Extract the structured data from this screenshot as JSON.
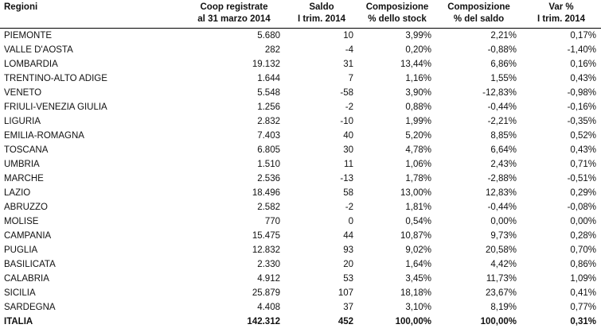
{
  "colors": {
    "background": "#ffffff",
    "text": "#111111",
    "header_rule": "#000000"
  },
  "table": {
    "header": [
      {
        "line1": "Regioni",
        "line2": ""
      },
      {
        "line1": "Coop registrate",
        "line2": "al 31 marzo 2014"
      },
      {
        "line1": "Saldo",
        "line2": "I trim. 2014"
      },
      {
        "line1": "Composizione",
        "line2": "% dello stock"
      },
      {
        "line1": "Composizione",
        "line2": "% del saldo"
      },
      {
        "line1": "Var %",
        "line2": "I trim. 2014"
      }
    ]
  },
  "chart_data": {
    "type": "table",
    "title": "",
    "columns": [
      "Regioni",
      "Coop registrate al 31 marzo 2014",
      "Saldo I trim. 2014",
      "Composizione % dello stock",
      "Composizione % del saldo",
      "Var % I trim. 2014"
    ],
    "rows": [
      [
        "PIEMONTE",
        "5.680",
        "10",
        "3,99%",
        "2,21%",
        "0,17%"
      ],
      [
        "VALLE D'AOSTA",
        "282",
        "-4",
        "0,20%",
        "-0,88%",
        "-1,40%"
      ],
      [
        "LOMBARDIA",
        "19.132",
        "31",
        "13,44%",
        "6,86%",
        "0,16%"
      ],
      [
        "TRENTINO-ALTO ADIGE",
        "1.644",
        "7",
        "1,16%",
        "1,55%",
        "0,43%"
      ],
      [
        "VENETO",
        "5.548",
        "-58",
        "3,90%",
        "-12,83%",
        "-0,98%"
      ],
      [
        "FRIULI-VENEZIA GIULIA",
        "1.256",
        "-2",
        "0,88%",
        "-0,44%",
        "-0,16%"
      ],
      [
        "LIGURIA",
        "2.832",
        "-10",
        "1,99%",
        "-2,21%",
        "-0,35%"
      ],
      [
        "EMILIA-ROMAGNA",
        "7.403",
        "40",
        "5,20%",
        "8,85%",
        "0,52%"
      ],
      [
        "TOSCANA",
        "6.805",
        "30",
        "4,78%",
        "6,64%",
        "0,43%"
      ],
      [
        "UMBRIA",
        "1.510",
        "11",
        "1,06%",
        "2,43%",
        "0,71%"
      ],
      [
        "MARCHE",
        "2.536",
        "-13",
        "1,78%",
        "-2,88%",
        "-0,51%"
      ],
      [
        "LAZIO",
        "18.496",
        "58",
        "13,00%",
        "12,83%",
        "0,29%"
      ],
      [
        "ABRUZZO",
        "2.582",
        "-2",
        "1,81%",
        "-0,44%",
        "-0,08%"
      ],
      [
        "MOLISE",
        "770",
        "0",
        "0,54%",
        "0,00%",
        "0,00%"
      ],
      [
        "CAMPANIA",
        "15.475",
        "44",
        "10,87%",
        "9,73%",
        "0,28%"
      ],
      [
        "PUGLIA",
        "12.832",
        "93",
        "9,02%",
        "20,58%",
        "0,70%"
      ],
      [
        "BASILICATA",
        "2.330",
        "20",
        "1,64%",
        "4,42%",
        "0,86%"
      ],
      [
        "CALABRIA",
        "4.912",
        "53",
        "3,45%",
        "11,73%",
        "1,09%"
      ],
      [
        "SICILIA",
        "25.879",
        "107",
        "18,18%",
        "23,67%",
        "0,41%"
      ],
      [
        "SARDEGNA",
        "4.408",
        "37",
        "3,10%",
        "8,19%",
        "0,77%"
      ]
    ],
    "total_row": [
      "ITALIA",
      "142.312",
      "452",
      "100,00%",
      "100,00%",
      "0,31%"
    ]
  }
}
